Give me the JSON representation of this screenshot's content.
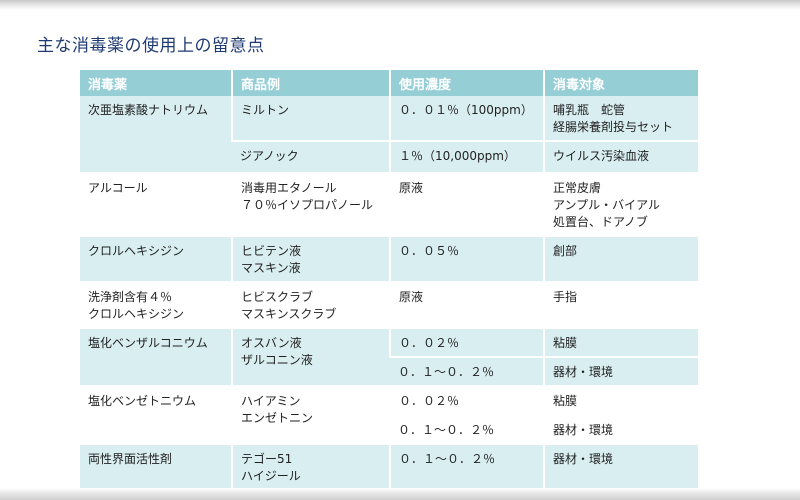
{
  "title": "主な消毒薬の使用上の留意点",
  "columns": [
    "消毒薬",
    "商品例",
    "使用濃度",
    "消毒対象"
  ],
  "rows": [
    {
      "agent": "次亜塩素酸ナトリウム",
      "product": "ミルトン",
      "conc": "０．０１％（100ppm）",
      "target": "哺乳瓶　蛇管",
      "target2": "経腸栄養剤投与セット"
    },
    {
      "product": "ジアノック",
      "conc": "１％（10,000ppm）",
      "target": "ウイルス汚染血液"
    },
    {
      "agent": "アルコール",
      "product": "消毒用エタノール",
      "product2": "７０％イソプロパノール",
      "conc": "原液",
      "target": "正常皮膚",
      "target2": "アンプル・バイアル",
      "target3": "処置台、ドアノブ"
    },
    {
      "agent": "クロルヘキシジン",
      "product": "ヒビテン液",
      "product2": "マスキン液",
      "conc": "０．０５％",
      "target": "創部"
    },
    {
      "agent": "洗浄剤含有４％",
      "agent2": "クロルヘキシジン",
      "product": "ヒビスクラブ",
      "product2": "マスキンスクラブ",
      "conc": "原液",
      "target": "手指"
    },
    {
      "agent": "塩化ベンザルコニウム",
      "product": "オスバン液",
      "product2": "ザルコニン液",
      "conc": "０．０２％",
      "target": "粘膜"
    },
    {
      "conc": "０．１～０．２％",
      "target": "器材・環境"
    },
    {
      "agent": "塩化ベンゼトニウム",
      "product": "ハイアミン",
      "product2": "エンゼトニン",
      "conc": "０．０２％",
      "target": "粘膜"
    },
    {
      "conc": "０．１～０．２％",
      "target": "器材・環境"
    },
    {
      "agent": "両性界面活性剤",
      "product": "テゴー51",
      "product2": "ハイジール",
      "conc": "０．１～０．２％",
      "target": "器材・環境"
    }
  ]
}
